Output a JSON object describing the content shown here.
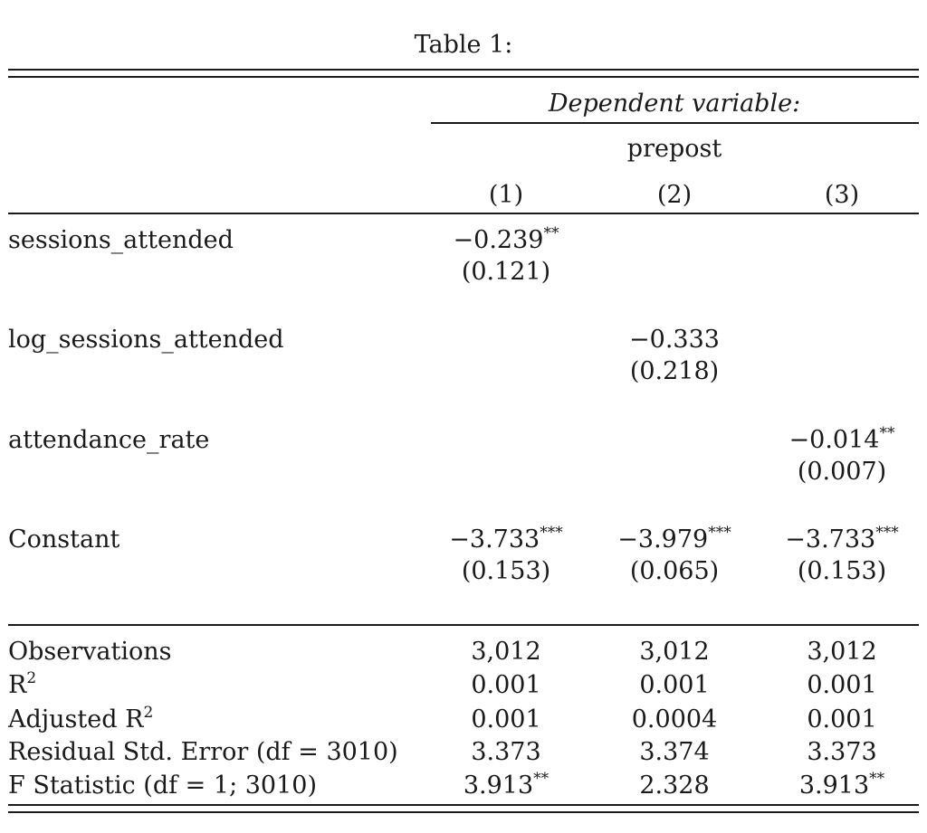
{
  "table": {
    "caption": "Table 1:",
    "dep_var_header": "Dependent variable:",
    "dep_var_name": "prepost",
    "columns": [
      "(1)",
      "(2)",
      "(3)"
    ],
    "coef_rows": [
      {
        "label": "sessions_attended",
        "coef": [
          "−0.239",
          "",
          ""
        ],
        "stars": [
          "**",
          "",
          ""
        ],
        "se": [
          "(0.121)",
          "",
          ""
        ]
      },
      {
        "label": "log_sessions_attended",
        "coef": [
          "",
          "−0.333",
          ""
        ],
        "stars": [
          "",
          "",
          ""
        ],
        "se": [
          "",
          "(0.218)",
          ""
        ]
      },
      {
        "label": "attendance_rate",
        "coef": [
          "",
          "",
          "−0.014"
        ],
        "stars": [
          "",
          "",
          "**"
        ],
        "se": [
          "",
          "",
          "(0.007)"
        ]
      },
      {
        "label": "Constant",
        "coef": [
          "−3.733",
          "−3.979",
          "−3.733"
        ],
        "stars": [
          "***",
          "***",
          "***"
        ],
        "se": [
          "(0.153)",
          "(0.065)",
          "(0.153)"
        ]
      }
    ],
    "stat_rows": [
      {
        "label": "Observations",
        "sup": "",
        "values": [
          "3,012",
          "3,012",
          "3,012"
        ],
        "stars": [
          "",
          "",
          ""
        ]
      },
      {
        "label": "R",
        "sup": "2",
        "values": [
          "0.001",
          "0.001",
          "0.001"
        ],
        "stars": [
          "",
          "",
          ""
        ]
      },
      {
        "label": "Adjusted R",
        "sup": "2",
        "values": [
          "0.001",
          "0.0004",
          "0.001"
        ],
        "stars": [
          "",
          "",
          ""
        ]
      },
      {
        "label": "Residual Std. Error (df = 3010)",
        "sup": "",
        "values": [
          "3.373",
          "3.374",
          "3.373"
        ],
        "stars": [
          "",
          "",
          ""
        ]
      },
      {
        "label": "F Statistic (df = 1; 3010)",
        "sup": "",
        "values": [
          "3.913",
          "2.328",
          "3.913"
        ],
        "stars": [
          "**",
          "",
          "**"
        ]
      }
    ]
  }
}
